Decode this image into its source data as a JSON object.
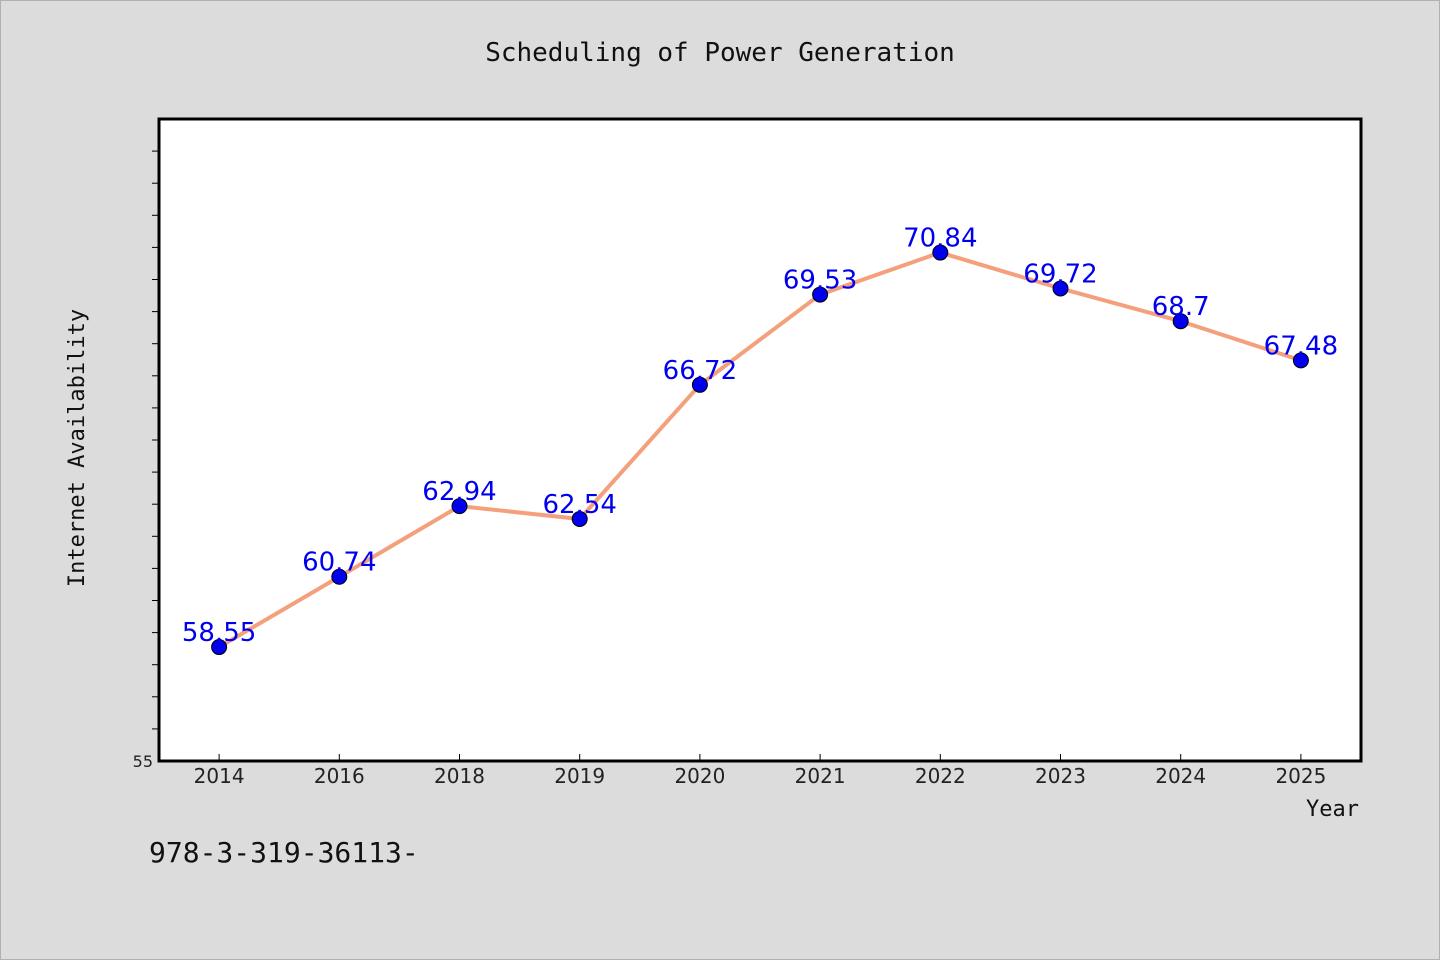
{
  "chart_data": {
    "type": "line",
    "title": "Scheduling of Power Generation",
    "xlabel": "Year",
    "ylabel": "Internet Availability",
    "categories": [
      "2014",
      "2016",
      "2018",
      "2019",
      "2020",
      "2021",
      "2022",
      "2023",
      "2024",
      "2025"
    ],
    "series": [
      {
        "values": [
          58.55,
          60.74,
          62.94,
          62.54,
          66.72,
          69.53,
          70.84,
          69.72,
          68.7,
          67.48
        ],
        "labels": [
          "58.55",
          "60.74",
          "62.94",
          "62.54",
          "66.72",
          "69.53",
          "70.84",
          "69.72",
          "68.7",
          "67.48"
        ],
        "line_color": "#f4a07c",
        "marker_color": "#0000ee"
      }
    ],
    "ylim": [
      55,
      75
    ],
    "y_tick_labels": [
      "55"
    ],
    "grid": false,
    "background": "#dcdcdc",
    "plot_background": "#ffffff"
  },
  "footer_text": "978-3-319-36113-"
}
